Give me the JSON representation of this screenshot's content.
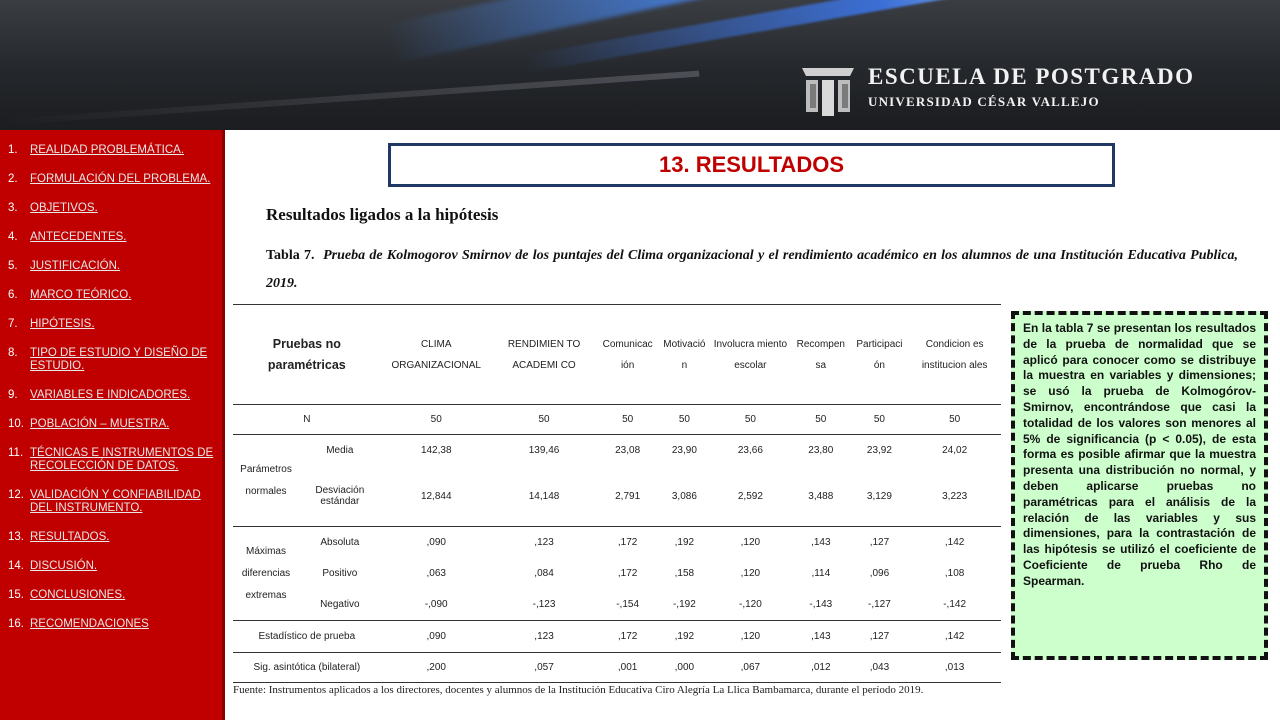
{
  "header": {
    "title": "ESCUELA DE POSTGRADO",
    "subtitle": "UNIVERSIDAD CÉSAR VALLEJO"
  },
  "sidebar": {
    "items": [
      {
        "num": "1.",
        "label": "REALIDAD PROBLEMÁTICA."
      },
      {
        "num": "2.",
        "label": "FORMULACIÓN DEL PROBLEMA."
      },
      {
        "num": "3.",
        "label": "OBJETIVOS."
      },
      {
        "num": "4.",
        "label": "ANTECEDENTES."
      },
      {
        "num": "5.",
        "label": "JUSTIFICACIÓN."
      },
      {
        "num": "6.",
        "label": "MARCO TEÓRICO."
      },
      {
        "num": "7.",
        "label": "HIPÓTESIS."
      },
      {
        "num": "8.",
        "label": "TIPO DE ESTUDIO Y DISEÑO DE ESTUDIO."
      },
      {
        "num": "9.",
        "label": "VARIABLES E INDICADORES."
      },
      {
        "num": "10.",
        "label": "POBLACIÓN – MUESTRA."
      },
      {
        "num": "11.",
        "label": "TÉCNICAS E INSTRUMENTOS DE RECOLECCIÓN DE DATOS."
      },
      {
        "num": "12.",
        "label": "VALIDACIÓN Y CONFIABILIDAD DEL INSTRUMENTO."
      },
      {
        "num": "13.",
        "label": "RESULTADOS."
      },
      {
        "num": "14.",
        "label": "DISCUSIÓN."
      },
      {
        "num": "15.",
        "label": "CONCLUSIONES."
      },
      {
        "num": "16.",
        "label": "RECOMENDACIONES"
      }
    ]
  },
  "main": {
    "title": "13. RESULTADOS",
    "subheading": "Resultados ligados a la hipótesis",
    "caption_label": "Tabla 7.",
    "caption_text": "Prueba de Kolmogorov Smirnov de los puntajes del Clima organizacional y el rendimiento académico en los alumnos de una Institución Educativa Publica, 2019.",
    "table": {
      "header_first": "Pruebas no paramétricas",
      "columns": [
        "CLIMA ORGANIZACIONAL",
        "RENDIMIEN TO ACADEMI CO",
        "Comunicac ión",
        "Motivació n",
        "Involucra miento escolar",
        "Recompen sa",
        "Participaci ón",
        "Condicion es institucion ales"
      ],
      "n_label": "N",
      "n_values": [
        "50",
        "50",
        "50",
        "50",
        "50",
        "50",
        "50",
        "50"
      ],
      "group1_label": "Parámetros normales",
      "media_label": "Media",
      "media_values": [
        "142,38",
        "139,46",
        "23,08",
        "23,90",
        "23,66",
        "23,80",
        "23,92",
        "24,02"
      ],
      "std_label": "Desviación estándar",
      "std_values": [
        "12,844",
        "14,148",
        "2,791",
        "3,086",
        "2,592",
        "3,488",
        "3,129",
        "3,223"
      ],
      "group2_label": "Máximas diferencias extremas",
      "abs_label": "Absoluta",
      "abs_values": [
        ",090",
        ",123",
        ",172",
        ",192",
        ",120",
        ",143",
        ",127",
        ",142"
      ],
      "pos_label": "Positivo",
      "pos_values": [
        ",063",
        ",084",
        ",172",
        ",158",
        ",120",
        ",114",
        ",096",
        ",108"
      ],
      "neg_label": "Negativo",
      "neg_values": [
        "-,090",
        "-,123",
        "-,154",
        "-,192",
        "-,120",
        "-,143",
        "-,127",
        "-,142"
      ],
      "est_label": "Estadístico de prueba",
      "est_values": [
        ",090",
        ",123",
        ",172",
        ",192",
        ",120",
        ",143",
        ",127",
        ",142"
      ],
      "sig_label": "Sig. asintótica (bilateral)",
      "sig_values": [
        ",200",
        ",057",
        ",001",
        ",000",
        ",067",
        ",012",
        ",043",
        ",013"
      ]
    },
    "source": "Fuente: Instrumentos aplicados a los directores, docentes y alumnos de la Institución Educativa Ciro Alegría La Llica Bambamarca, durante el período 2019.",
    "comment": "En la tabla 7 se presentan los resultados de la prueba de normalidad que se aplicó para conocer como se distribuye la muestra en variables y dimensiones; se usó la prueba de Kolmogórov-Smirnov, encontrándose que casi la totalidad de los valores son menores al 5% de significancia (p < 0.05), de esta forma es posible afirmar que la muestra presenta una distribución no normal, y deben aplicarse pruebas no paramétricas para el análisis de la relación de las variables y sus dimensiones, para la contrastación de las hipótesis se utilizó el coeficiente de Coeficiente de prueba Rho de Spearman."
  },
  "colors": {
    "sidebar": "#c00000",
    "title_text": "#c00000",
    "title_border": "#1f3864",
    "comment_bg": "#ccffcc"
  }
}
